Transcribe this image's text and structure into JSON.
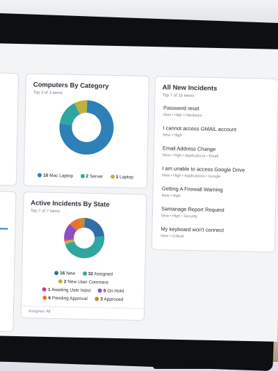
{
  "computers_by_category": {
    "title": "Computers By Category",
    "subtitle": "Top 3 of 3 items",
    "legend": [
      {
        "count": "10",
        "label": "Mac Laptop",
        "color": "#2f7fb8"
      },
      {
        "count": "2",
        "label": "Server",
        "color": "#2fa7a0"
      },
      {
        "count": "1",
        "label": "Laptop",
        "color": "#bfb33a"
      }
    ],
    "chart_data": {
      "type": "pie",
      "categories": [
        "Mac Laptop",
        "Server",
        "Laptop"
      ],
      "values": [
        10,
        2,
        1
      ]
    }
  },
  "active_incidents": {
    "title": "Active Incidents By State",
    "subtitle": "Top 7 of 7 items",
    "legend": [
      {
        "count": "16",
        "label": "New",
        "color": "#2f6fa8"
      },
      {
        "count": "32",
        "label": "Assigned",
        "color": "#2fa7a0"
      },
      {
        "count": "2",
        "label": "New User Comment",
        "color": "#bfb33a"
      },
      {
        "count": "1",
        "label": "Awaiting User Input",
        "color": "#e0338a"
      },
      {
        "count": "9",
        "label": "On Hold",
        "color": "#8e4fc6"
      },
      {
        "count": "6",
        "label": "Pending Approval",
        "color": "#e8752a"
      },
      {
        "count": "3",
        "label": "Approved",
        "color": "#c9882e"
      }
    ],
    "footer": "Assignee: All",
    "chart_data": {
      "type": "pie",
      "categories": [
        "New",
        "Assigned",
        "New User Comment",
        "Awaiting User Input",
        "On Hold",
        "Pending Approval",
        "Approved"
      ],
      "values": [
        16,
        32,
        2,
        1,
        9,
        6,
        3
      ]
    }
  },
  "all_new_incidents": {
    "title": "All New Incidents",
    "subtitle": "Top 7 of 16 items",
    "items": [
      {
        "title": "Password reset",
        "meta": "New  •  High  •  Hardware"
      },
      {
        "title": "I cannot access GMAIL account",
        "meta": "New  •  High"
      },
      {
        "title": "Email Address Change",
        "meta": "New  •  High  •  Applications  •  Email"
      },
      {
        "title": "I am unable to access Google Drive",
        "meta": "New  •  High  •  Applications  •  Google"
      },
      {
        "title": "Getting A Firewall Warning",
        "meta": "New  •  High"
      },
      {
        "title": "Samanage Report Request",
        "meta": "New  •  High  •  Security"
      },
      {
        "title": "My keyboard won't connect",
        "meta": "New  •  Critical"
      }
    ]
  }
}
